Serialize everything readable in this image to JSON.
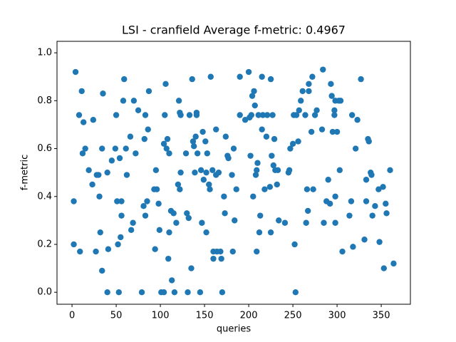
{
  "chart_data": {
    "type": "scatter",
    "title": "LSI - cranfield  Average f-metric: 0.4967",
    "x_label": "queries",
    "y_label": "f-metric",
    "color": "#1f77b4",
    "xlim": [
      -17,
      383
    ],
    "ylim": [
      -0.05,
      1.048
    ],
    "xticks": [
      0,
      50,
      100,
      150,
      200,
      250,
      300,
      350
    ],
    "yticks": [
      {
        "value": 0,
        "label": "0.0"
      },
      {
        "value": 0.2,
        "label": "0.2"
      },
      {
        "value": 0.4,
        "label": "0.4"
      },
      {
        "value": 0.6,
        "label": "0.6"
      },
      {
        "value": 0.8,
        "label": "0.8"
      },
      {
        "value": 1.0,
        "label": "1.0"
      }
    ],
    "x": [
      2,
      2,
      4,
      8,
      9,
      11,
      12,
      13,
      15,
      19,
      23,
      24,
      27,
      28,
      30,
      31,
      32,
      34,
      35,
      34,
      40,
      40,
      41,
      45,
      49,
      50,
      51,
      52,
      53,
      54,
      55,
      56,
      56,
      58,
      59,
      61,
      62,
      66,
      67,
      69,
      70,
      72,
      75,
      79,
      81,
      82,
      83,
      83,
      85,
      86,
      87,
      93,
      94,
      95,
      96,
      98,
      99,
      101,
      104,
      104,
      105,
      106,
      107,
      108,
      109,
      110,
      110,
      112,
      113,
      115,
      116,
      118,
      120,
      122,
      121,
      123,
      123,
      122,
      129,
      130,
      131,
      132,
      133,
      135,
      136,
      137,
      138,
      139,
      140,
      141,
      141,
      142,
      145,
      146,
      147,
      148,
      149,
      151,
      152,
      152,
      153,
      155,
      156,
      157,
      159,
      160,
      160,
      163,
      163,
      164,
      166,
      168,
      169,
      170,
      172,
      173,
      174,
      176,
      177,
      181,
      182,
      183,
      184,
      186,
      190,
      190,
      196,
      200,
      201,
      202,
      203,
      205,
      204,
      206,
      207,
      208,
      209,
      209,
      210,
      211,
      212,
      213,
      215,
      215,
      216,
      218,
      220,
      221,
      224,
      225,
      225,
      226,
      227,
      228,
      229,
      230,
      232,
      233,
      234,
      241,
      245,
      246,
      247,
      250,
      251,
      252,
      253,
      254,
      256,
      257,
      259,
      261,
      264,
      265,
      266,
      267,
      268,
      268,
      271,
      272,
      273,
      275,
      277,
      283,
      284,
      285,
      288,
      290,
      292,
      293,
      294,
      295,
      297,
      297,
      298,
      298,
      298,
      300,
      302,
      303,
      306,
      304,
      314,
      316,
      318,
      317,
      321,
      323,
      327,
      331,
      333,
      333,
      335,
      336,
      338,
      339,
      340,
      343,
      347,
      348,
      352,
      353,
      355,
      356,
      360,
      364
    ],
    "values": [
      0.38,
      0.2,
      0.92,
      0.74,
      0.17,
      0.84,
      0.58,
      0.71,
      0.6,
      0.51,
      0.45,
      0.72,
      0.17,
      0.49,
      0.49,
      0.4,
      0.25,
      0.09,
      0.83,
      0.6,
      0.5,
      0,
      0.18,
      0.55,
      0.6,
      0.74,
      0.38,
      0.2,
      0,
      0.56,
      0.23,
      0.32,
      0.38,
      0.8,
      0.89,
      0.6,
      0.49,
      0.65,
      0.26,
      0.29,
      0.8,
      0.58,
      0.76,
      0,
      0.36,
      0.64,
      0.74,
      0.32,
      0.38,
      0.68,
      0.84,
      0.43,
      0.18,
      0.51,
      0.43,
      0.37,
      0.26,
      0,
      0,
      0.62,
      0.74,
      0.87,
      0.6,
      0.64,
      0.14,
      0.25,
      0.58,
      0.34,
      0.05,
      0.33,
      0,
      0.29,
      0.45,
      0.43,
      0.8,
      0.74,
      0.5,
      0.75,
      0.58,
      0.33,
      0,
      0.31,
      0.74,
      0.1,
      0.89,
      0.63,
      0.61,
      0.5,
      0.65,
      0.75,
      0.74,
      0.58,
      0,
      0.51,
      0.29,
      0.67,
      0.47,
      0.63,
      0.5,
      0.25,
      0.58,
      0.45,
      0.43,
      0.9,
      0.51,
      0.14,
      0.17,
      0.68,
      0.49,
      0.17,
      0.5,
      0.17,
      0.14,
      0,
      0.4,
      0.33,
      0.65,
      0.57,
      0.56,
      0.49,
      0.17,
      0.6,
      0.3,
      0.43,
      0.74,
      0.9,
      0.72,
      0.92,
      0.73,
      0.57,
      0.74,
      0.4,
      0.82,
      0.84,
      0.78,
      0.49,
      0.17,
      0.51,
      0.54,
      0.74,
      0.25,
      0.32,
      0.9,
      0.68,
      0.74,
      0.43,
      0.65,
      0.74,
      0.44,
      0.89,
      0.25,
      0.57,
      0.74,
      0.53,
      0.64,
      0.51,
      0.45,
      0.51,
      0.3,
      0.29,
      0.5,
      0.51,
      0.6,
      0.62,
      0.74,
      0.2,
      0,
      0.74,
      0.63,
      0.76,
      0.8,
      0.84,
      0.74,
      0.29,
      0.43,
      0.34,
      0.87,
      0.84,
      0.67,
      0.9,
      0.43,
      0.74,
      0.76,
      0.68,
      0.93,
      0.29,
      0.38,
      0.47,
      0.37,
      0.87,
      0.82,
      0.67,
      0.74,
      0.76,
      0.4,
      0.8,
      0.29,
      0.67,
      0.8,
      0.51,
      0.17,
      0.8,
      0.32,
      0.38,
      0.19,
      0.74,
      0.6,
      0.72,
      0.89,
      0.22,
      0.38,
      0.47,
      0.64,
      0.63,
      0.5,
      0.49,
      0.32,
      0.36,
      0.43,
      0.21,
      0.44,
      0.1,
      0.37,
      0.33,
      0.51,
      0.12
    ]
  }
}
